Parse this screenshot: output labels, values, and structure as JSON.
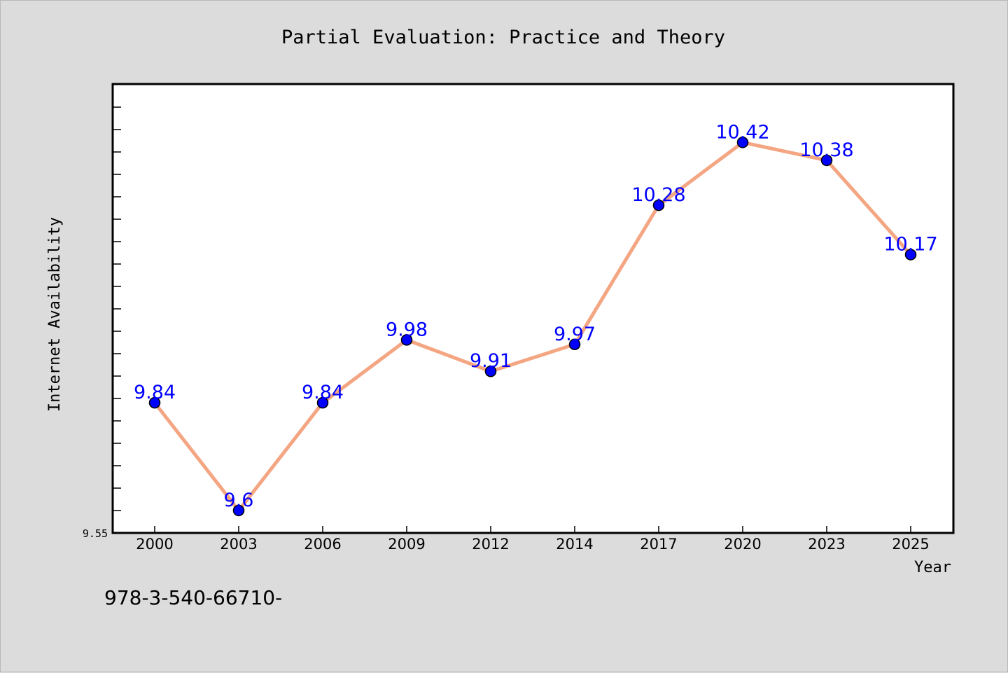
{
  "chart_data": {
    "type": "line",
    "title": "Partial Evaluation: Practice and Theory",
    "xlabel": "Year",
    "ylabel": "Internet Availability",
    "categories": [
      "2000",
      "2003",
      "2006",
      "2009",
      "2012",
      "2014",
      "2017",
      "2020",
      "2023",
      "2025"
    ],
    "series": [
      {
        "values": [
          9.84,
          9.6,
          9.84,
          9.98,
          9.91,
          9.97,
          10.28,
          10.42,
          10.38,
          10.17
        ],
        "labels": [
          "9.84",
          "9.6",
          "9.84",
          "9.98",
          "9.91",
          "9.97",
          "10.28",
          "10.42",
          "10.38",
          "10.17"
        ],
        "line_color": "#f4a582",
        "marker_color": "#0000ff",
        "label_color": "#0000ff"
      }
    ],
    "ylim": [
      9.55,
      10.55
    ],
    "y_tick_labels": [
      "9.55"
    ],
    "grid": false,
    "footnote": "978-3-540-66710-",
    "colors": {
      "background": "#dcdcdc",
      "plot_background": "#ffffff"
    }
  }
}
